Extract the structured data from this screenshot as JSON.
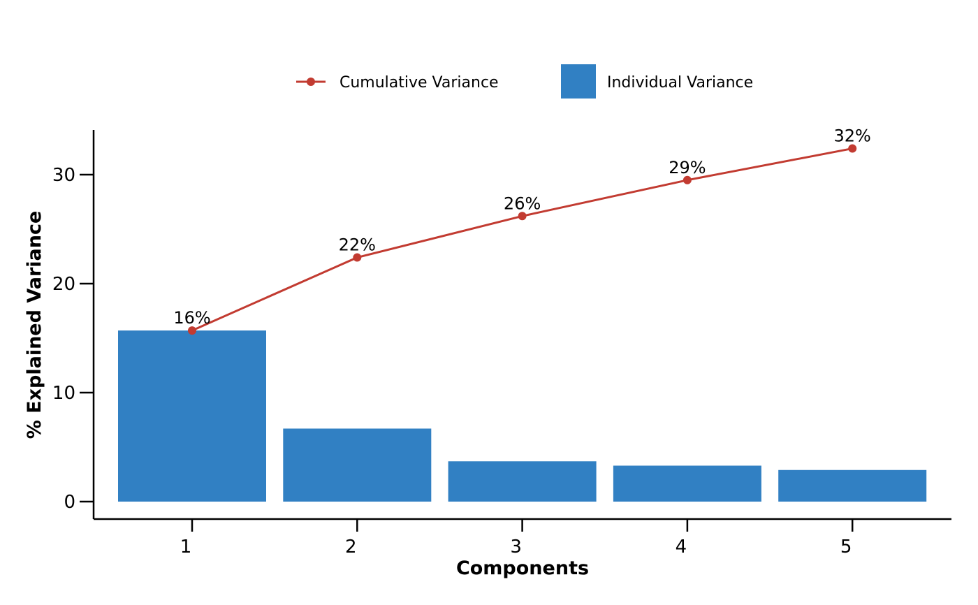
{
  "chart_data": {
    "type": "bar",
    "categories": [
      "1",
      "2",
      "3",
      "4",
      "5"
    ],
    "series": [
      {
        "name": "Individual Variance",
        "type": "bar",
        "color": "#3180c3",
        "values": [
          15.7,
          6.7,
          3.7,
          3.3,
          2.9
        ]
      },
      {
        "name": "Cumulative Variance",
        "type": "line",
        "color": "#c23b31",
        "values": [
          15.7,
          22.4,
          26.2,
          29.5,
          32.4
        ],
        "labels": [
          "16%",
          "22%",
          "26%",
          "29%",
          "32%"
        ]
      }
    ],
    "xlabel": "Components",
    "ylabel": "% Explained Variance",
    "yticks": [
      0,
      10,
      20,
      30
    ],
    "ylim": [
      -1.6,
      34
    ],
    "grid": false,
    "legend_position": "top-center"
  }
}
